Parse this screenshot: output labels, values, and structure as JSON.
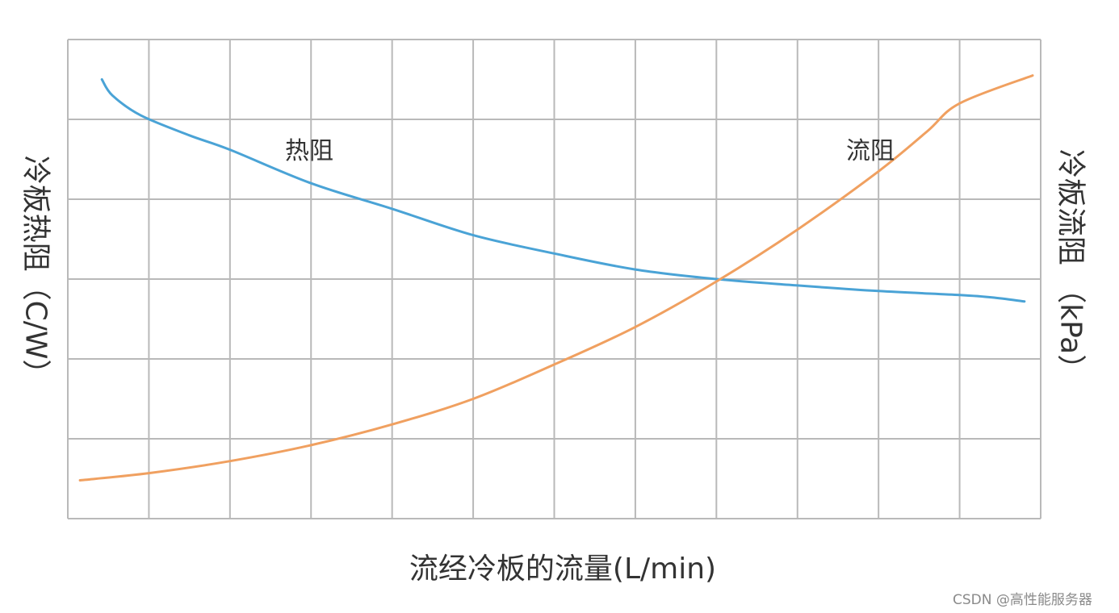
{
  "chart_data": {
    "type": "line",
    "xlabel": "流经冷板的流量(L/min)",
    "ylabel_left": "冷板热阻（C/W）",
    "ylabel_right": "冷板流阻 （kPa）",
    "grid": true,
    "x_grid_lines": 12,
    "y_grid_lines": 6,
    "xlim": [
      0,
      12
    ],
    "ylim": [
      0,
      6
    ],
    "series": [
      {
        "name": "热阻",
        "color": "#4aa3d6",
        "x": [
          0.42,
          0.55,
          0.9,
          1.5,
          2.0,
          3.0,
          4.0,
          5.0,
          6.0,
          7.0,
          8.0,
          9.0,
          10.0,
          11.0,
          11.4,
          11.8
        ],
        "y": [
          5.5,
          5.3,
          5.05,
          4.8,
          4.62,
          4.2,
          3.88,
          3.55,
          3.32,
          3.12,
          3.0,
          2.92,
          2.85,
          2.8,
          2.77,
          2.72
        ]
      },
      {
        "name": "流阻",
        "color": "#f0a060",
        "x": [
          0.15,
          1.0,
          2.0,
          3.0,
          4.0,
          5.0,
          6.0,
          7.0,
          8.0,
          9.0,
          10.0,
          10.6,
          11.0,
          11.9
        ],
        "y": [
          0.48,
          0.57,
          0.72,
          0.92,
          1.18,
          1.5,
          1.93,
          2.4,
          2.97,
          3.62,
          4.35,
          4.85,
          5.2,
          5.55
        ]
      }
    ],
    "curve_labels": [
      "热阻",
      "流阻"
    ]
  },
  "watermark": "CSDN @高性能服务器"
}
